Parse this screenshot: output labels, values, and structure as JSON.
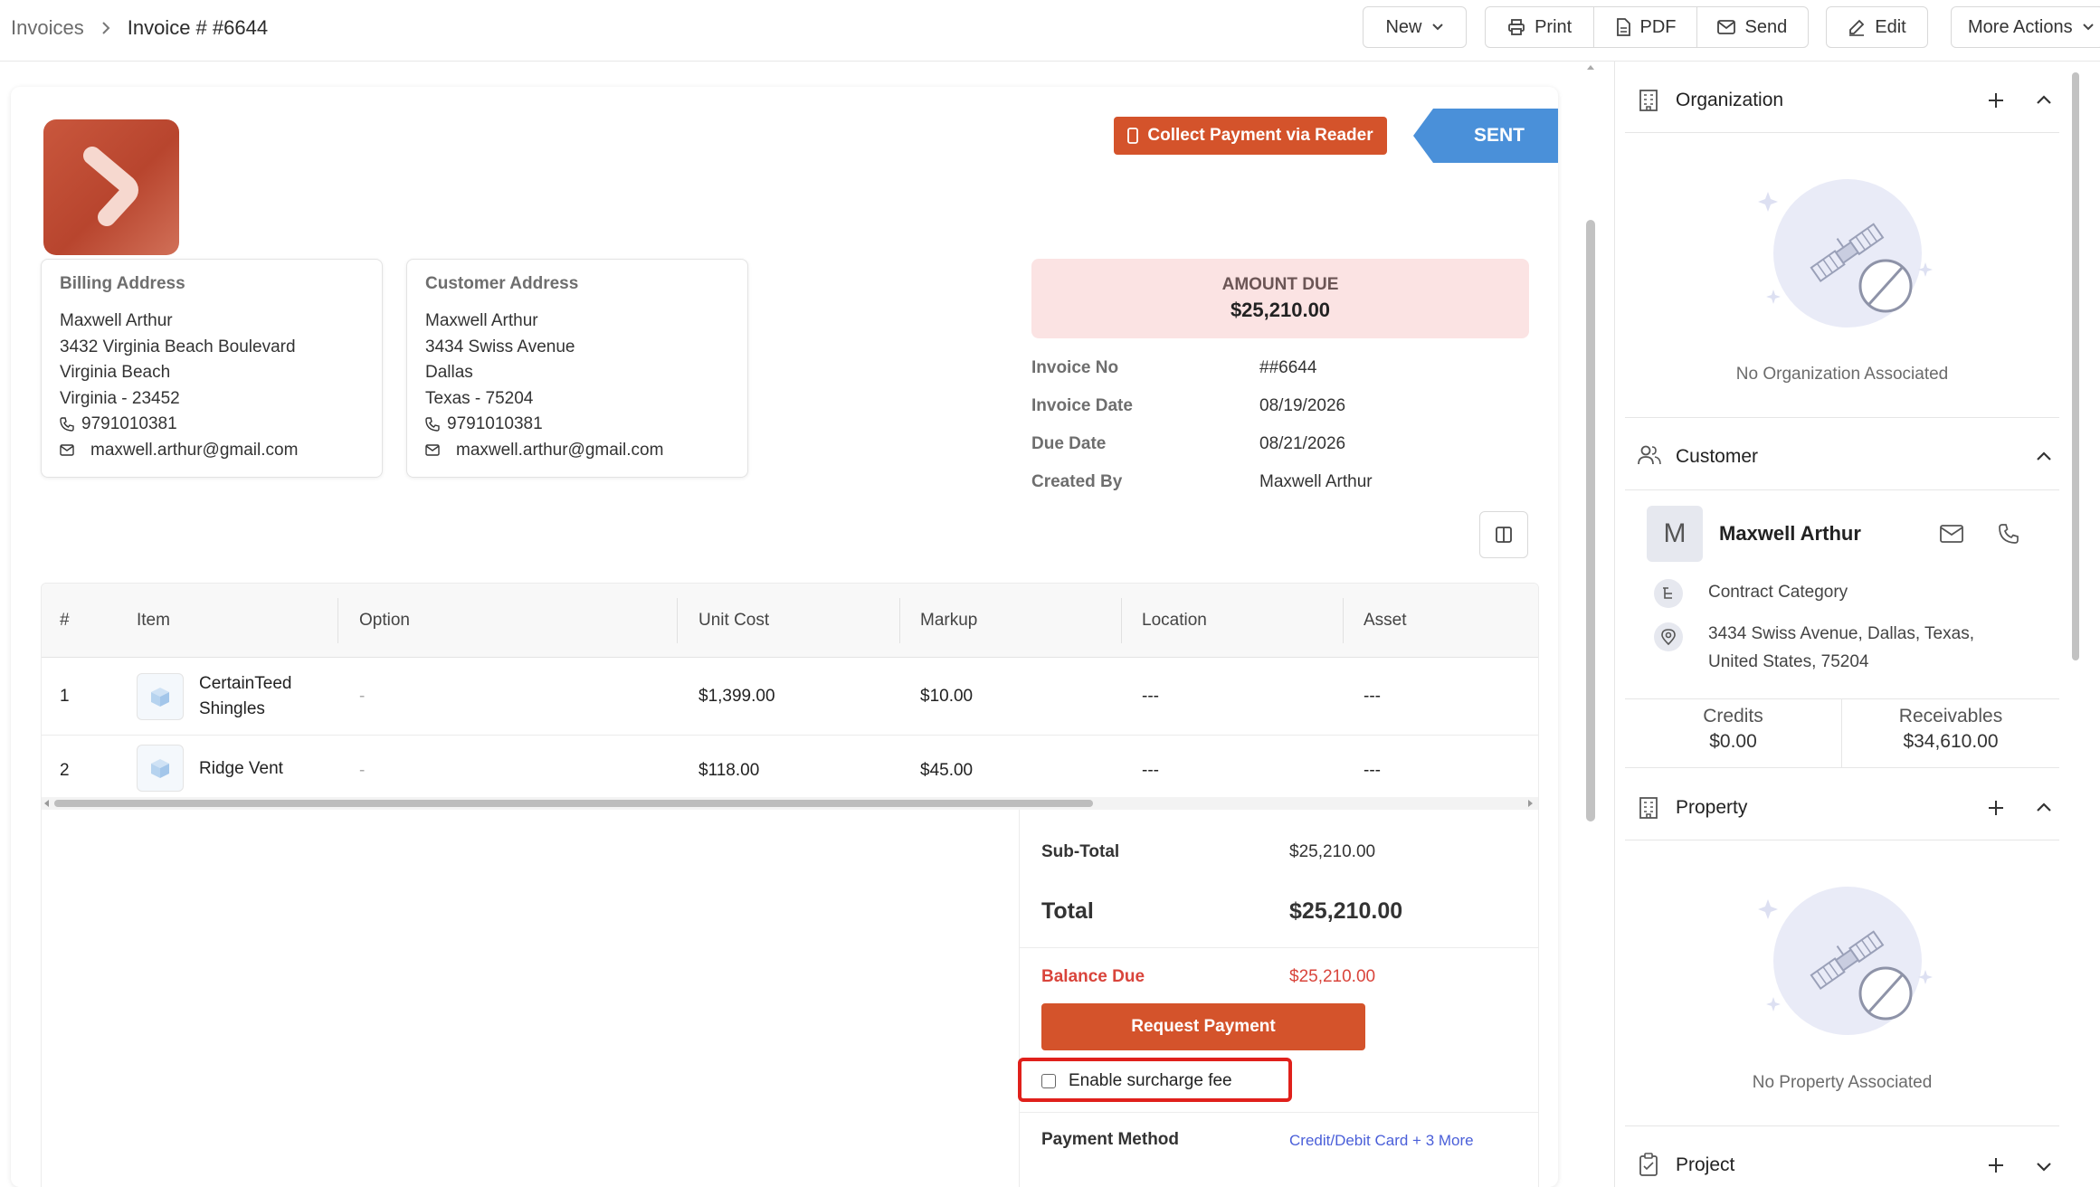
{
  "breadcrumb": {
    "parent": "Invoices",
    "current": "Invoice # #6644"
  },
  "toolbar": {
    "new_label": "New",
    "print_label": "Print",
    "pdf_label": "PDF",
    "send_label": "Send",
    "edit_label": "Edit",
    "more_label": "More Actions"
  },
  "colors": {
    "accent": "#d4532b",
    "sent_ribbon": "#4a90d9",
    "amount_due_bg": "#fbe3e3",
    "balance_due": "#d9443b",
    "link": "#4a5fd9",
    "highlight_box": "#e0201b"
  },
  "invoice": {
    "collect_payment_label": "Collect Payment via Reader",
    "status": "SENT",
    "billing": {
      "title": "Billing Address",
      "name": "Maxwell Arthur",
      "street": "3432 Virginia Beach Boulevard",
      "city": "Virginia Beach",
      "state_zip": "Virginia - 23452",
      "phone": "9791010381",
      "email": "maxwell.arthur@gmail.com"
    },
    "customer_address": {
      "title": "Customer Address",
      "name": "Maxwell Arthur",
      "street": "3434 Swiss Avenue",
      "city": "Dallas",
      "state_zip": "Texas - 75204",
      "phone": "9791010381",
      "email": "maxwell.arthur@gmail.com"
    },
    "amount_due": {
      "label": "AMOUNT DUE",
      "value": "$25,210.00"
    },
    "meta": [
      {
        "label": "Invoice No",
        "value": "##6644"
      },
      {
        "label": "Invoice Date",
        "value": "08/19/2026"
      },
      {
        "label": "Due Date",
        "value": "08/21/2026"
      },
      {
        "label": "Created By",
        "value": "Maxwell Arthur"
      }
    ],
    "table": {
      "headers": [
        "#",
        "Item",
        "Option",
        "Unit Cost",
        "Markup",
        "Location",
        "Asset"
      ],
      "rows": [
        {
          "num": "1",
          "item_line1": "CertainTeed",
          "item_line2": "Shingles",
          "option": "-",
          "unit_cost": "$1,399.00",
          "markup": "$10.00",
          "location": "---",
          "asset": "---"
        },
        {
          "num": "2",
          "item_line1": "Ridge Vent",
          "item_line2": "",
          "option": "-",
          "unit_cost": "$118.00",
          "markup": "$45.00",
          "location": "---",
          "asset": "---"
        }
      ]
    },
    "totals": {
      "subtotal_label": "Sub-Total",
      "subtotal": "$25,210.00",
      "total_label": "Total",
      "total": "$25,210.00",
      "balance_label": "Balance Due",
      "balance": "$25,210.00"
    },
    "request_payment_label": "Request Payment",
    "surcharge_label": "Enable surcharge fee",
    "payment_method_label": "Payment Method",
    "payment_method_value": "Credit/Debit Card + 3 More"
  },
  "sidebar": {
    "organization": {
      "title": "Organization",
      "empty": "No Organization Associated"
    },
    "customer": {
      "title": "Customer",
      "initial": "M",
      "name": "Maxwell Arthur",
      "category": "Contract Category",
      "address_line1": "3434 Swiss Avenue, Dallas, Texas,",
      "address_line2": "United States, 75204",
      "credits_label": "Credits",
      "credits": "$0.00",
      "receivables_label": "Receivables",
      "receivables": "$34,610.00"
    },
    "property": {
      "title": "Property",
      "empty": "No Property Associated"
    },
    "project": {
      "title": "Project"
    }
  }
}
